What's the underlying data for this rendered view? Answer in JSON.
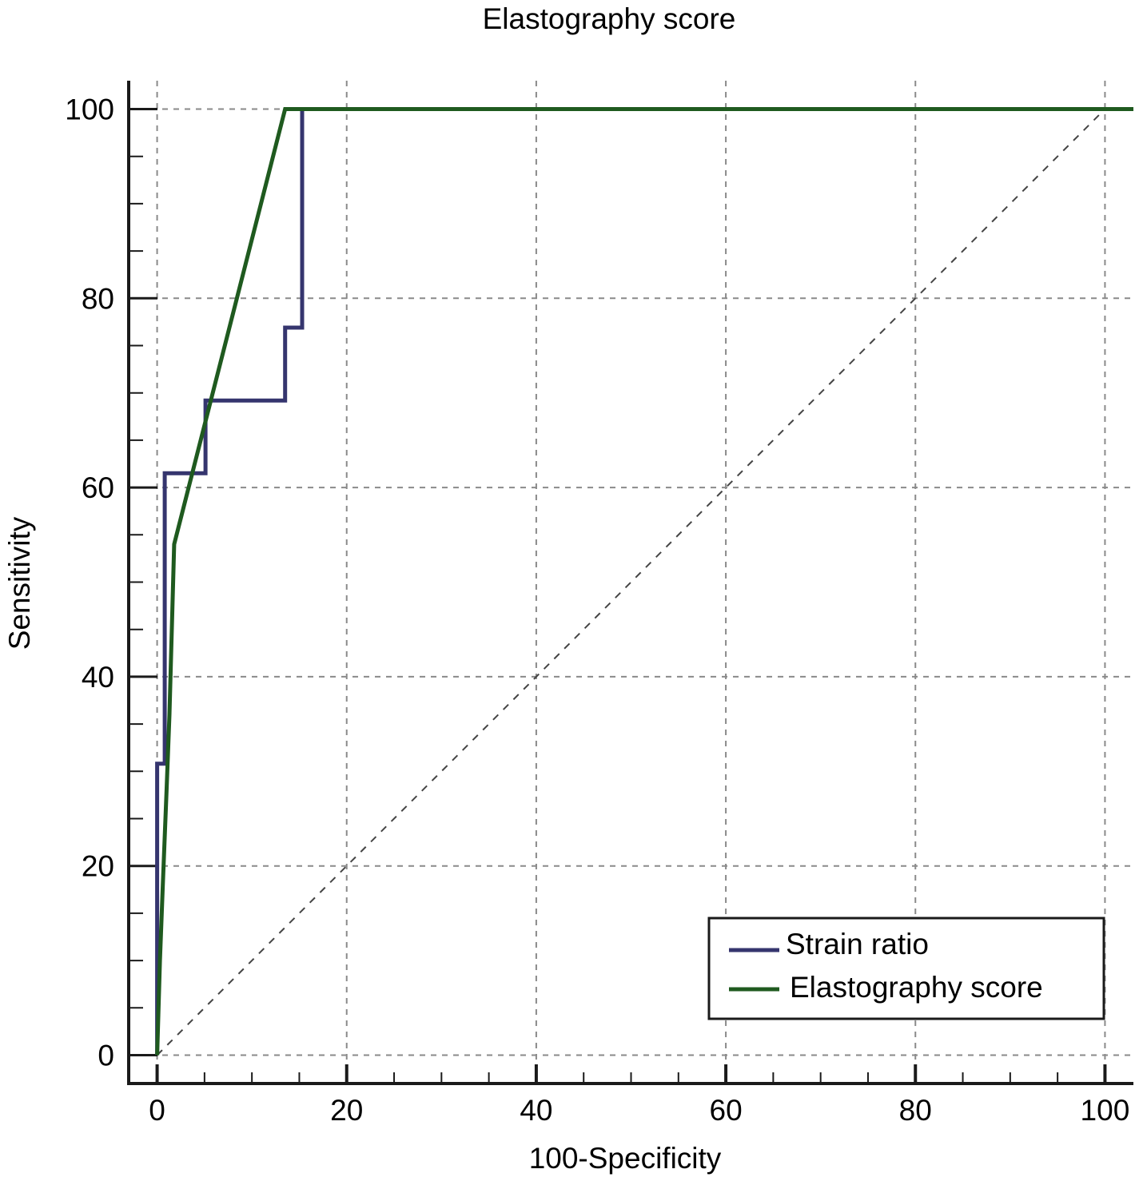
{
  "chart_data": {
    "type": "line",
    "title": "Elastography score",
    "xlabel": "100-Specificity",
    "ylabel": "Sensitivity",
    "xlim": [
      -3,
      103
    ],
    "ylim": [
      -3,
      103
    ],
    "x_ticks": [
      0,
      20,
      40,
      60,
      80,
      100
    ],
    "y_ticks": [
      0,
      20,
      40,
      60,
      80,
      100
    ],
    "grid": true,
    "legend_position": "bottom-right",
    "reference_line": true,
    "series": [
      {
        "name": "Strain ratio",
        "color": "#35356e",
        "x": [
          0,
          0,
          0.8,
          0.8,
          1.6,
          1.6,
          5.1,
          5.1,
          13.5,
          13.5,
          15.3,
          15.3,
          103
        ],
        "y": [
          0,
          30.8,
          30.8,
          61.5,
          61.5,
          61.5,
          61.5,
          69.2,
          69.2,
          76.9,
          76.9,
          100,
          100
        ]
      },
      {
        "name": "Elastography score",
        "color": "#1f5a1f",
        "x": [
          0,
          0.3,
          0.6,
          1.0,
          1.3,
          1.8,
          13.5,
          103
        ],
        "y": [
          0,
          10,
          18,
          28,
          36,
          54,
          100,
          100
        ]
      }
    ]
  }
}
